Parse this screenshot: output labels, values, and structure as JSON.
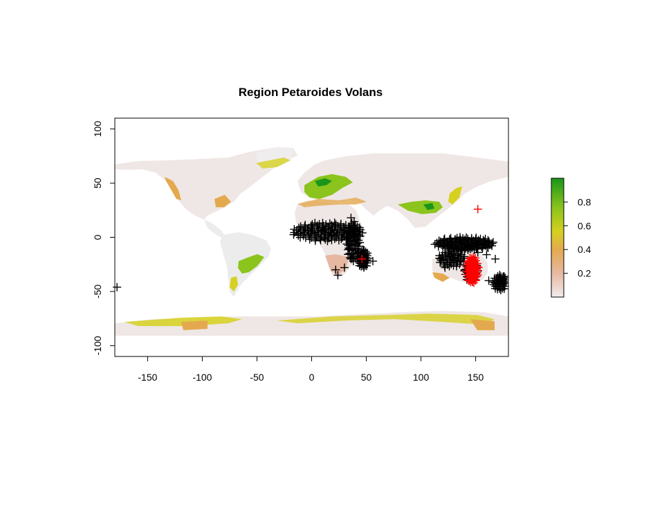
{
  "chart_data": {
    "type": "heatmap",
    "title": "Region Petaroides Volans",
    "xlabel": "",
    "ylabel": "",
    "xlim": [
      -180,
      180
    ],
    "ylim": [
      -110,
      110
    ],
    "x_ticks": [
      -150,
      -100,
      -50,
      0,
      50,
      100,
      150
    ],
    "y_ticks": [
      -100,
      -50,
      0,
      50,
      100
    ],
    "x_tick_labels": [
      "-150",
      "-100",
      "-50",
      "0",
      "50",
      "100",
      "150"
    ],
    "y_tick_labels": [
      "-100",
      "-50",
      "0",
      "50",
      "100"
    ],
    "colorbar": {
      "range": [
        0,
        1
      ],
      "ticks": [
        0.2,
        0.4,
        0.6,
        0.8
      ],
      "tick_labels": [
        "0.2",
        "0.4",
        "0.6",
        "0.8"
      ],
      "colors": [
        "#f1eded",
        "#e6b8a2",
        "#e4a94f",
        "#d6d020",
        "#8bc41c",
        "#1a961a"
      ]
    },
    "raster_background_color": "#efe7e5",
    "ocean_color": "#ffffff",
    "series": [
      {
        "values": [
          [
            -178,
            -46
          ],
          [
            24,
            -35
          ],
          [
            36,
            18
          ],
          [
            46,
            -20
          ],
          [
            48,
            -24
          ],
          [
            56,
            -22
          ],
          [
            48,
            -12
          ],
          [
            -10,
            10
          ],
          [
            0,
            8
          ],
          [
            10,
            6
          ],
          [
            20,
            4
          ],
          [
            30,
            6
          ],
          [
            38,
            8
          ],
          [
            34,
            -10
          ],
          [
            36,
            -20
          ],
          [
            30,
            -28
          ],
          [
            22,
            -30
          ],
          [
            128,
            -10
          ],
          [
            136,
            -12
          ],
          [
            144,
            -10
          ],
          [
            152,
            -14
          ],
          [
            160,
            -16
          ],
          [
            168,
            -20
          ],
          [
            162,
            -40
          ],
          [
            170,
            -40
          ],
          [
            176,
            -36
          ],
          [
            118,
            -20
          ],
          [
            122,
            -28
          ],
          [
            140,
            -30
          ],
          [
            132,
            -4
          ],
          [
            150,
            -6
          ]
        ],
        "color": "#000000"
      },
      {
        "values": [
          [
            152,
            26
          ],
          [
            148,
            -28
          ],
          [
            146,
            -36
          ],
          [
            144,
            -40
          ],
          [
            150,
            -40
          ],
          [
            46,
            -20
          ]
        ],
        "color": "#ff0000"
      }
    ]
  }
}
